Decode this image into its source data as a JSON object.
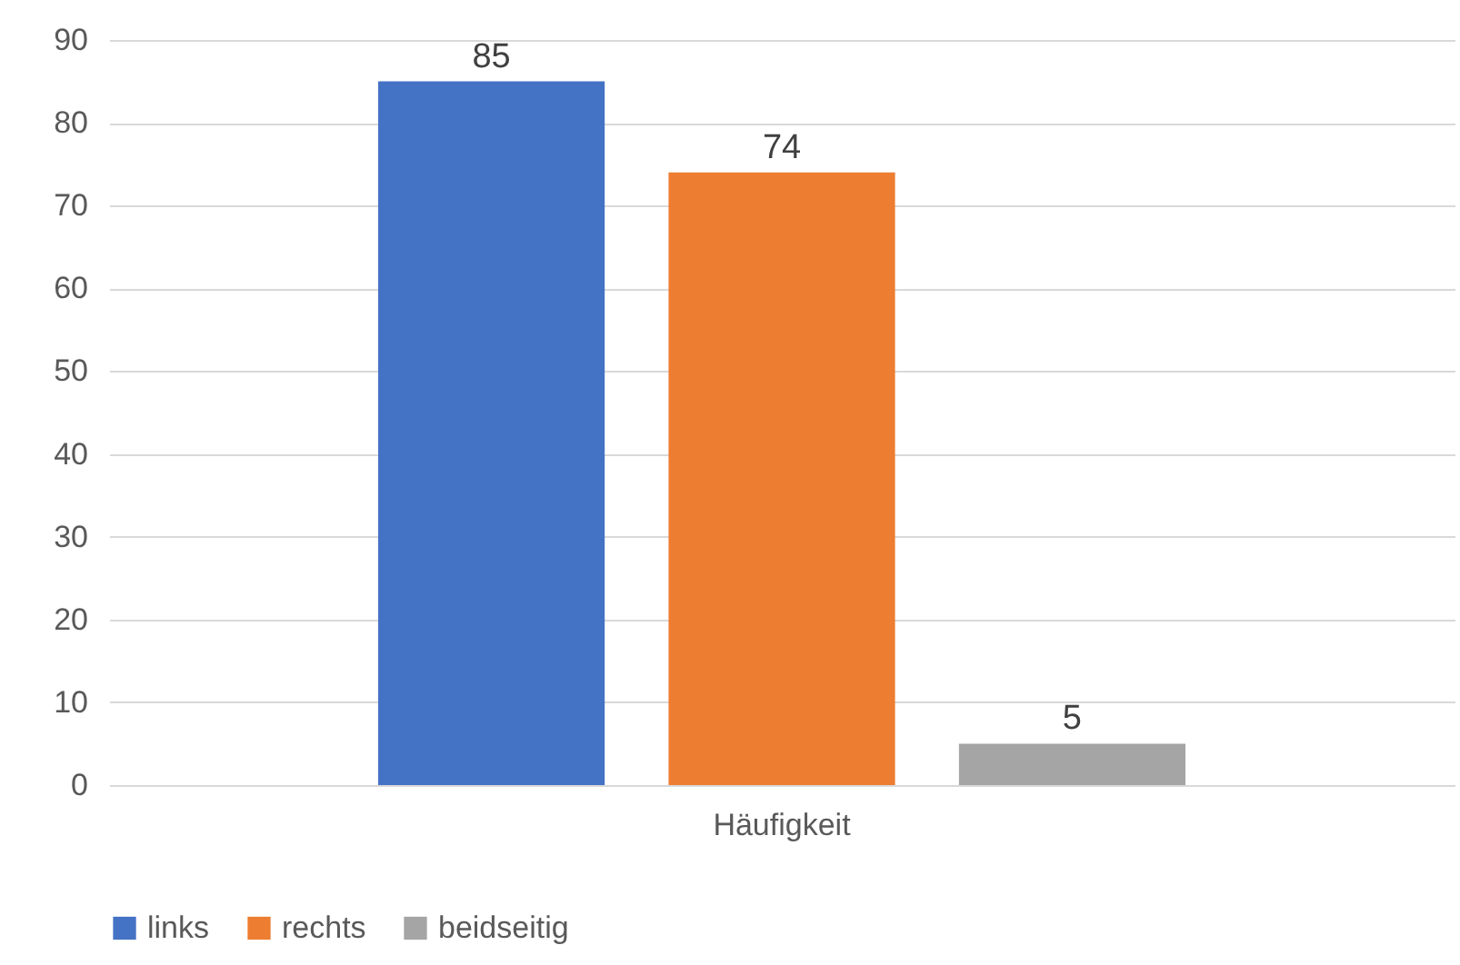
{
  "chart_data": {
    "type": "bar",
    "categories": [
      "Häufigkeit"
    ],
    "series": [
      {
        "name": "links",
        "color": "#4472c4",
        "values": [
          85
        ]
      },
      {
        "name": "rechts",
        "color": "#ed7d31",
        "values": [
          74
        ]
      },
      {
        "name": "beidseitig",
        "color": "#a5a5a5",
        "values": [
          5
        ]
      }
    ],
    "ylim": [
      0,
      90
    ],
    "yticks": [
      0,
      10,
      20,
      30,
      40,
      50,
      60,
      70,
      80,
      90
    ],
    "grid": "y",
    "legend": "bottom",
    "data_labels": true
  }
}
